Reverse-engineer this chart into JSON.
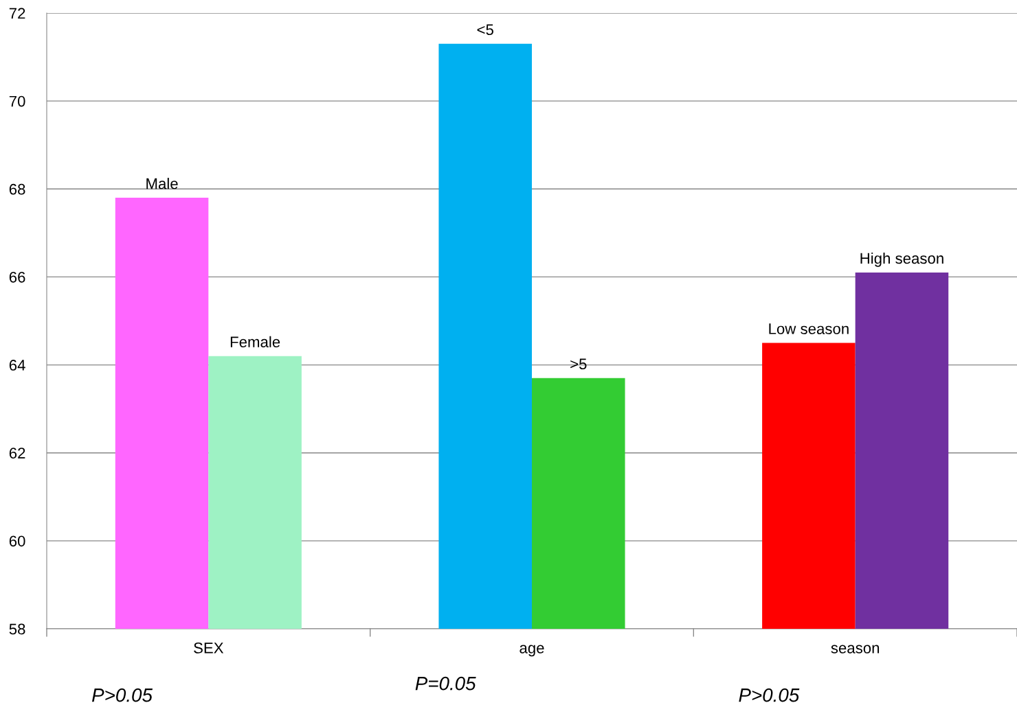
{
  "chart_data": {
    "type": "bar",
    "categories": [
      "SEX",
      "age",
      "season"
    ],
    "series": [
      {
        "colors": [
          "#ff66ff",
          "#00b0f0",
          "#ff0000"
        ],
        "values": [
          67.8,
          71.3,
          64.5
        ],
        "value_labels": [
          "Male",
          "<5",
          "Low season"
        ]
      },
      {
        "colors": [
          "#9ef2c4",
          "#33cc33",
          "#7030a0"
        ],
        "values": [
          64.2,
          63.7,
          66.1
        ],
        "value_labels": [
          "Female",
          ">5",
          "High season"
        ]
      }
    ],
    "ylim": [
      58,
      72
    ],
    "yticks": [
      58,
      60,
      62,
      64,
      66,
      68,
      70,
      72
    ],
    "grid": "y",
    "legend": false,
    "annotations": [
      "P>0.05",
      "P=0.05",
      "P>0.05"
    ]
  }
}
